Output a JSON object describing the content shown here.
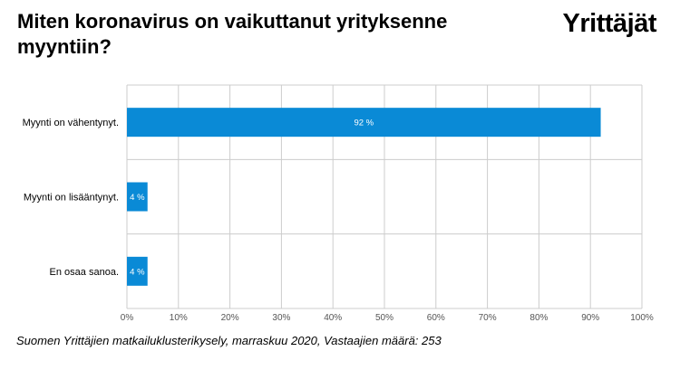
{
  "title": "Miten koronavirus on vaikuttanut yrityksenne myyntiin?",
  "logo_text": "Yrittäjät",
  "source": "Suomen Yrittäjien matkailuklusterikysely, marraskuu 2020, Vastaajien määrä: 253",
  "colors": {
    "bar": "#0a8ad6",
    "grid": "#cccccc",
    "axis_text": "#555555"
  },
  "chart_data": {
    "type": "bar",
    "orientation": "horizontal",
    "categories": [
      "Myynti on vähentynyt.",
      "Myynti on lisääntynyt.",
      "En osaa sanoa."
    ],
    "values": [
      92,
      4,
      4
    ],
    "value_labels": [
      "92 %",
      "4 %",
      "4 %"
    ],
    "xlim": [
      0,
      100
    ],
    "x_ticks": [
      0,
      10,
      20,
      30,
      40,
      50,
      60,
      70,
      80,
      90,
      100
    ],
    "x_tick_labels": [
      "0%",
      "10%",
      "20%",
      "30%",
      "40%",
      "50%",
      "60%",
      "70%",
      "80%",
      "90%",
      "100%"
    ],
    "grid": true,
    "legend": "none",
    "xlabel": "",
    "ylabel": ""
  }
}
